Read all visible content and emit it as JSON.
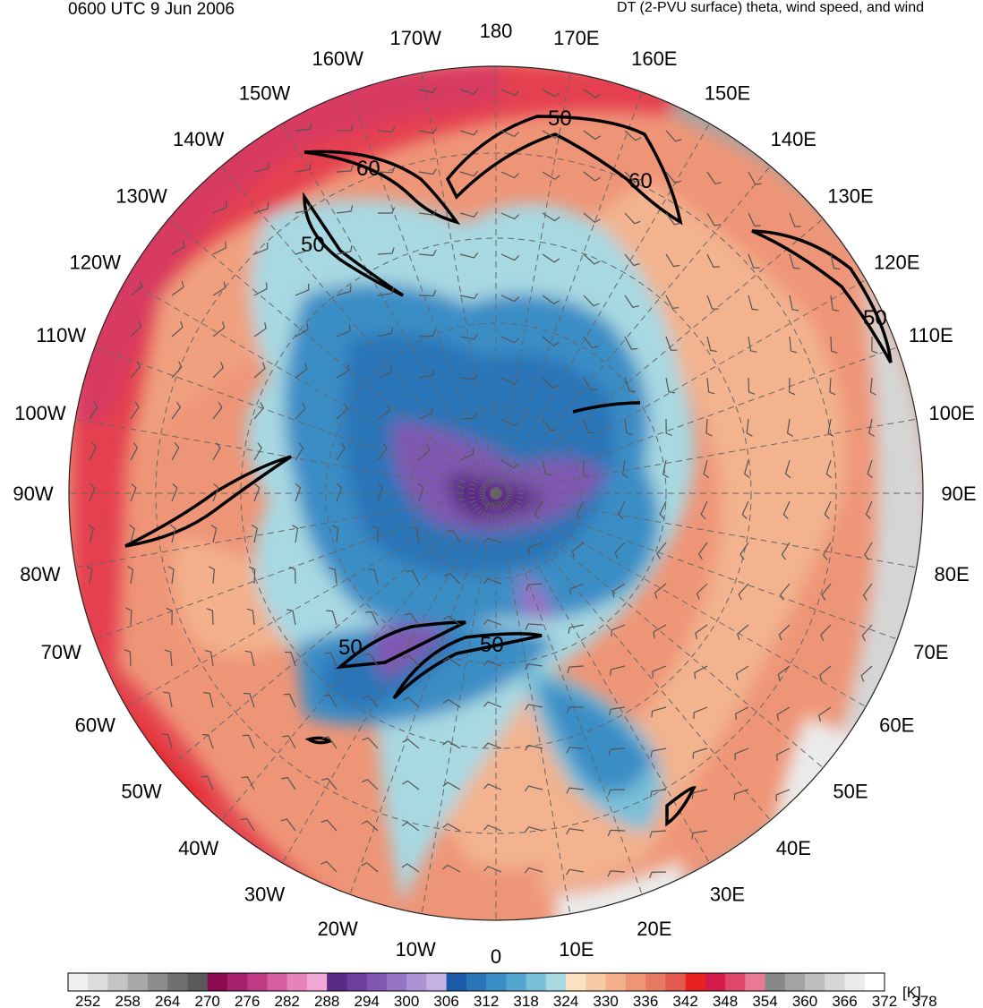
{
  "header": {
    "valid_time": "0600 UTC 9 Jun 2006",
    "field_description": "DT (2-PVU surface) theta, wind speed, and wind"
  },
  "map": {
    "projection": "north-polar-stereographic",
    "longitude_labels": [
      "180",
      "170E",
      "160E",
      "150E",
      "140E",
      "130E",
      "120E",
      "110E",
      "100E",
      "90E",
      "80E",
      "70E",
      "60E",
      "50E",
      "40E",
      "30E",
      "20E",
      "10E",
      "0",
      "10W",
      "20W",
      "30W",
      "40W",
      "50W",
      "60W",
      "70W",
      "80W",
      "90W",
      "100W",
      "110W",
      "120W",
      "130W",
      "140W",
      "150W",
      "160W",
      "170W"
    ],
    "wind_speed_contour_labels": [
      "50",
      "60",
      "60",
      "50",
      "50",
      "50",
      "50"
    ],
    "regions": {
      "polar_vortex": "purple",
      "midlatitudes": "orange-salmon",
      "tropics_edge": "red-magenta",
      "asia_tropopause_high": "gray"
    }
  },
  "colorbar": {
    "unit": "[K]",
    "tick_labels": [
      "252",
      "258",
      "264",
      "270",
      "276",
      "282",
      "288",
      "294",
      "300",
      "306",
      "312",
      "318",
      "324",
      "330",
      "336",
      "342",
      "348",
      "354",
      "360",
      "366",
      "372",
      "378"
    ],
    "colors": [
      "#f0f0f0",
      "#dcdcdc",
      "#c4c4c4",
      "#a8a8a8",
      "#8c8c8c",
      "#707070",
      "#5a5a5a",
      "#8b0a50",
      "#a6206e",
      "#c03a86",
      "#d75ea0",
      "#e683bb",
      "#f2a6d3",
      "#5b2a86",
      "#6d3ea0",
      "#8058b2",
      "#9673c4",
      "#ad92d5",
      "#c4b2e4",
      "#1a5aa8",
      "#2c74b8",
      "#3b8dc6",
      "#53a5cf",
      "#79bfd8",
      "#a8d8e2",
      "#fbe1c2",
      "#f7c9a4",
      "#f3b08b",
      "#ee9574",
      "#e97a62",
      "#e45a50",
      "#e8221f",
      "#d31b4c",
      "#e0456b",
      "#e87a95",
      "#888888",
      "#a4a4a4",
      "#bdbdbd",
      "#d6d6d6",
      "#ebebeb",
      "#ffffff"
    ]
  }
}
